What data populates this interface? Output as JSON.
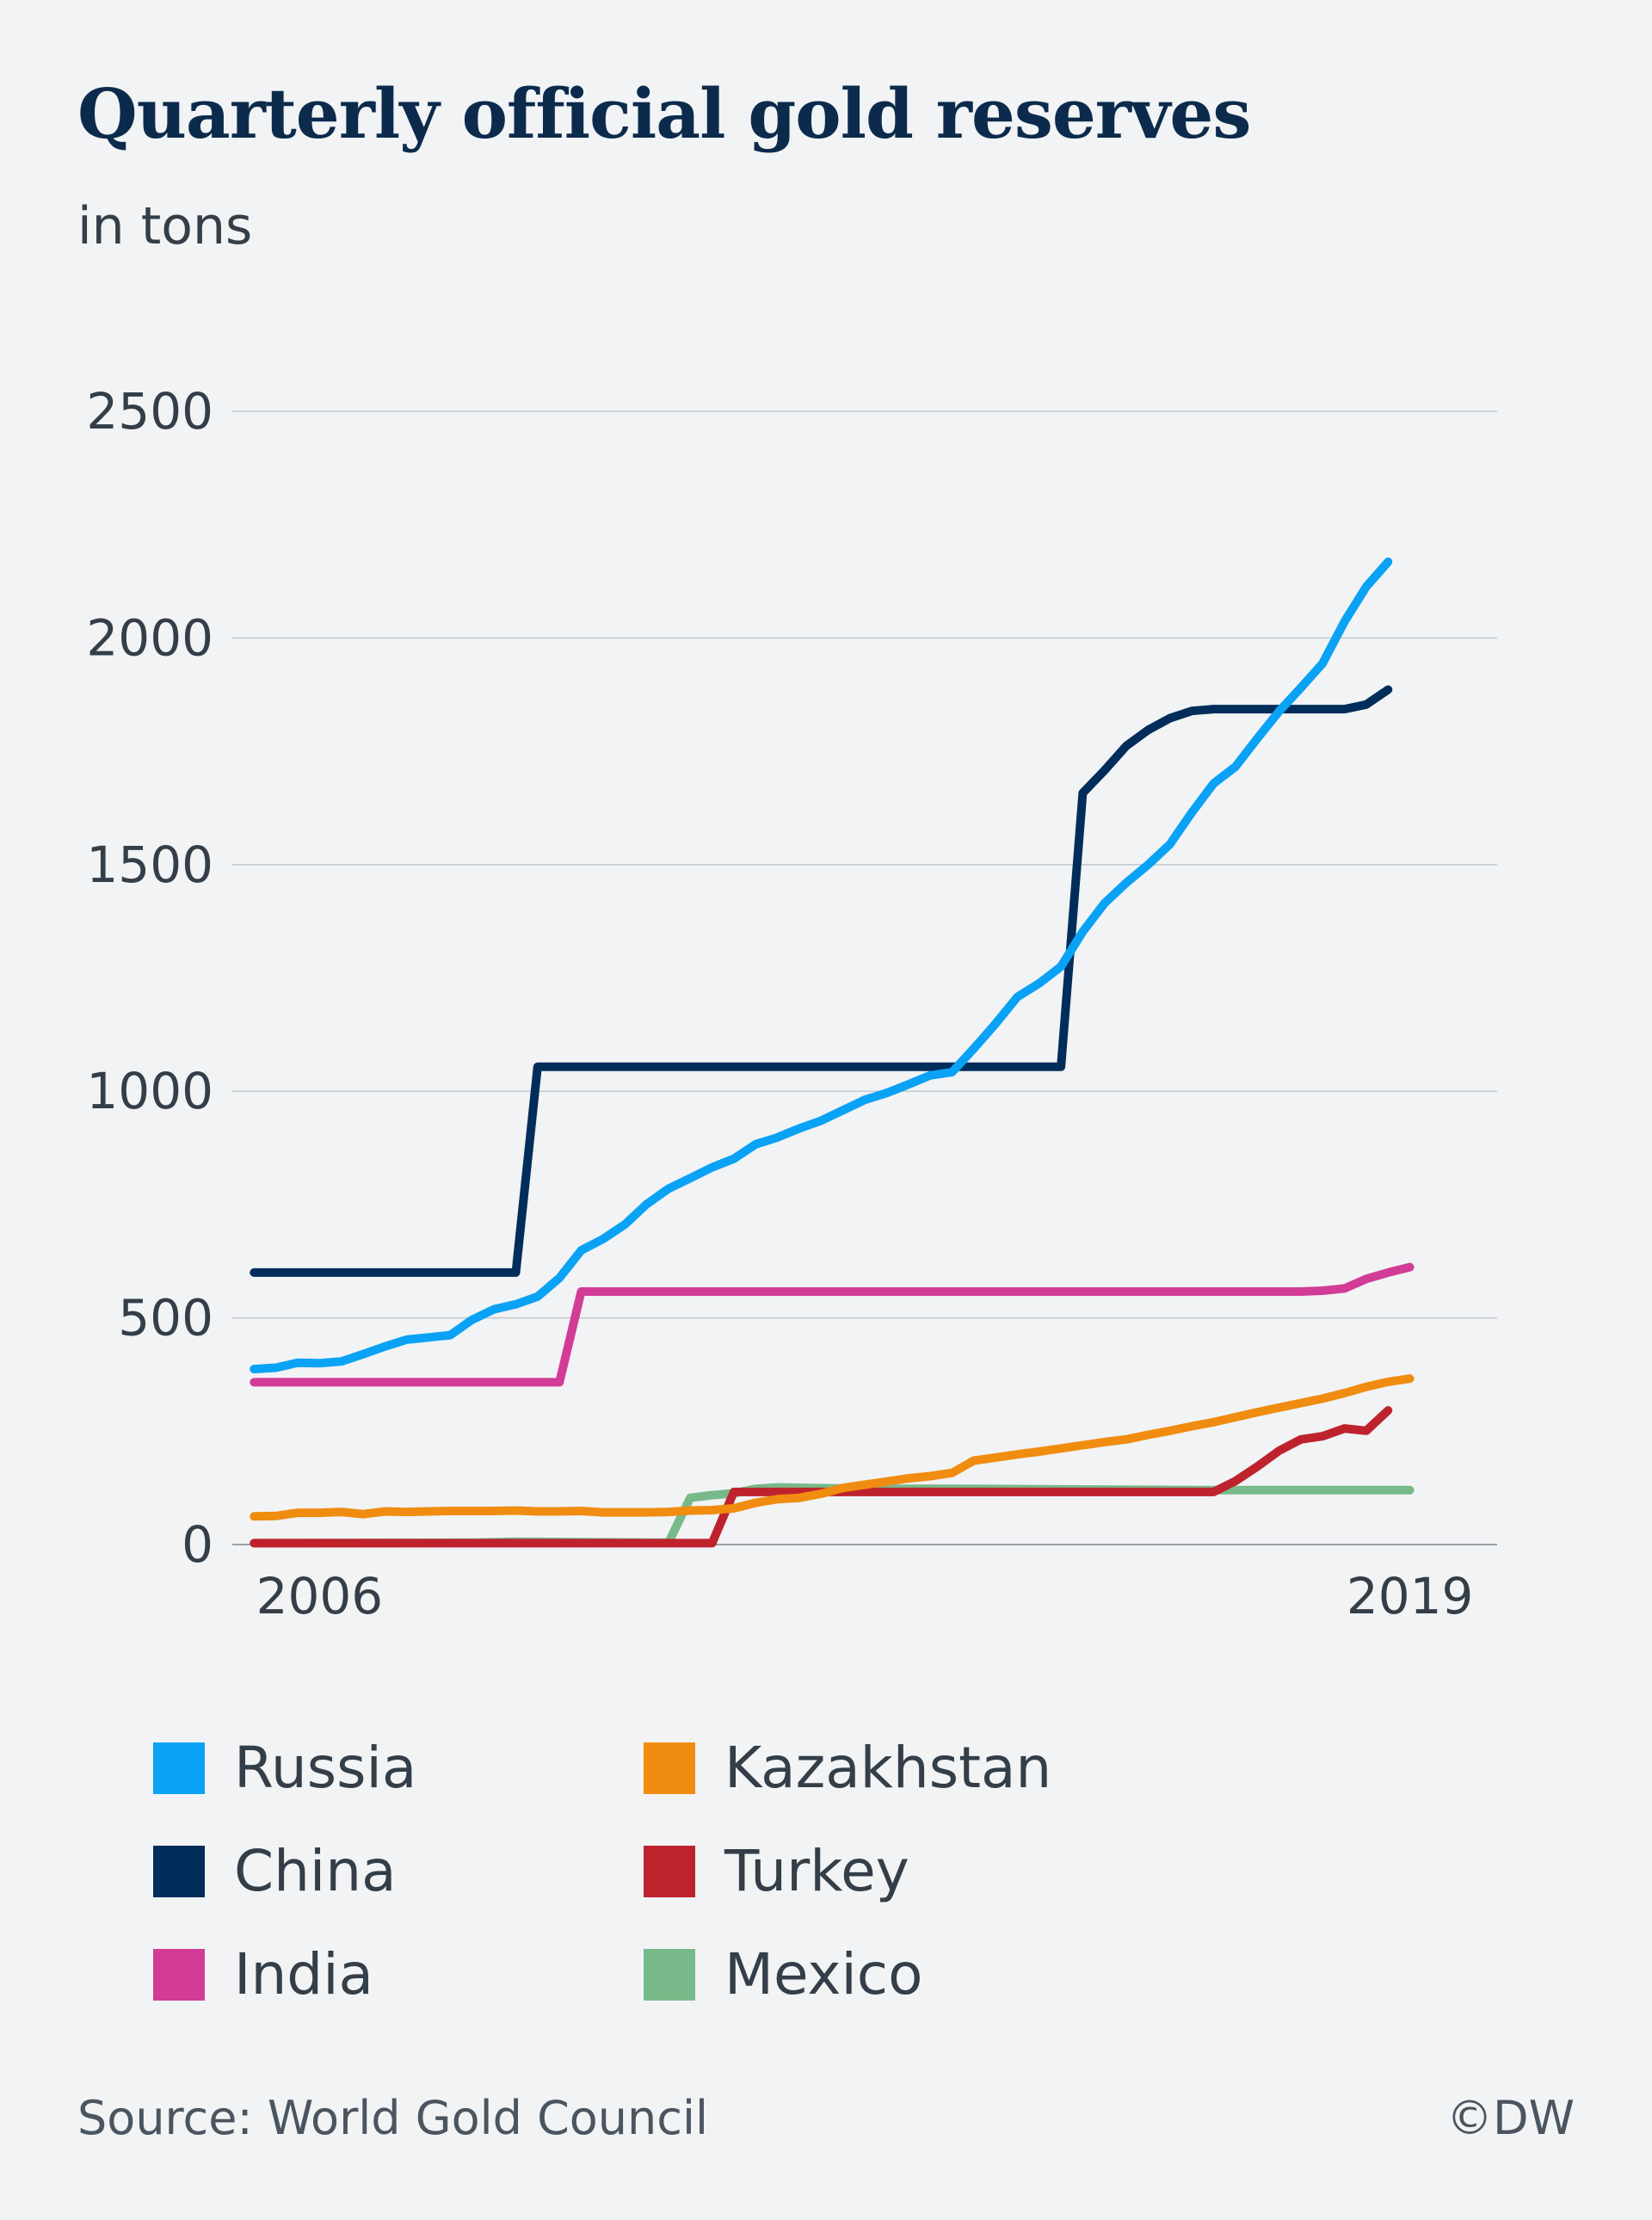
{
  "header": {
    "title": "Quarterly official gold reserves",
    "subtitle": "in tons"
  },
  "footer": {
    "source": "Source: World Gold Council",
    "copyright": "©DW"
  },
  "chart_data": {
    "type": "line",
    "title": "Quarterly official gold reserves",
    "subtitle": "in tons",
    "xlabel": "",
    "ylabel": "",
    "ylim": [
      0,
      2500
    ],
    "yticks": [
      0,
      500,
      1000,
      1500,
      2000,
      2500
    ],
    "xlim": [
      2005.75,
      2020.25
    ],
    "xtick_labels": [
      {
        "x": 2006.75,
        "label": "2006"
      },
      {
        "x": 2019.25,
        "label": "2019"
      }
    ],
    "grid": "horizontal",
    "legend_position": "bottom",
    "series": [
      {
        "name": "Russia",
        "color": "#0aa2f5",
        "points": [
          [
            2006.0,
            387
          ],
          [
            2006.25,
            390
          ],
          [
            2006.5,
            401
          ],
          [
            2006.75,
            400
          ],
          [
            2007.0,
            404
          ],
          [
            2007.25,
            420
          ],
          [
            2007.5,
            437
          ],
          [
            2007.75,
            452
          ],
          [
            2008.0,
            457
          ],
          [
            2008.25,
            462
          ],
          [
            2008.5,
            496
          ],
          [
            2008.75,
            519
          ],
          [
            2009.0,
            530
          ],
          [
            2009.25,
            547
          ],
          [
            2009.5,
            588
          ],
          [
            2009.75,
            649
          ],
          [
            2010.0,
            674
          ],
          [
            2010.25,
            706
          ],
          [
            2010.5,
            751
          ],
          [
            2010.75,
            785
          ],
          [
            2011.0,
            808
          ],
          [
            2011.25,
            832
          ],
          [
            2011.5,
            851
          ],
          [
            2011.75,
            883
          ],
          [
            2012.0,
            898
          ],
          [
            2012.25,
            918
          ],
          [
            2012.5,
            935
          ],
          [
            2012.75,
            958
          ],
          [
            2013.0,
            981
          ],
          [
            2013.25,
            996
          ],
          [
            2013.5,
            1015
          ],
          [
            2013.75,
            1035
          ],
          [
            2014.0,
            1042
          ],
          [
            2014.25,
            1094
          ],
          [
            2014.5,
            1149
          ],
          [
            2014.75,
            1208
          ],
          [
            2015.0,
            1238
          ],
          [
            2015.25,
            1275
          ],
          [
            2015.5,
            1352
          ],
          [
            2015.75,
            1415
          ],
          [
            2016.0,
            1460
          ],
          [
            2016.25,
            1500
          ],
          [
            2016.5,
            1545
          ],
          [
            2016.75,
            1615
          ],
          [
            2017.0,
            1679
          ],
          [
            2017.25,
            1716
          ],
          [
            2017.5,
            1778
          ],
          [
            2017.75,
            1838
          ],
          [
            2018.0,
            1890
          ],
          [
            2018.25,
            1944
          ],
          [
            2018.5,
            2036
          ],
          [
            2018.75,
            2113
          ],
          [
            2019.0,
            2168
          ]
        ]
      },
      {
        "name": "China",
        "color": "#002d5a",
        "points": [
          [
            2006.0,
            600
          ],
          [
            2009.0,
            600
          ],
          [
            2009.25,
            1054
          ],
          [
            2015.25,
            1054
          ],
          [
            2015.5,
            1658
          ],
          [
            2015.75,
            1708
          ],
          [
            2016.0,
            1762
          ],
          [
            2016.25,
            1797
          ],
          [
            2016.5,
            1823
          ],
          [
            2016.75,
            1839
          ],
          [
            2017.0,
            1843
          ],
          [
            2017.5,
            1843
          ],
          [
            2018.0,
            1843
          ],
          [
            2018.25,
            1843
          ],
          [
            2018.5,
            1843
          ],
          [
            2018.75,
            1853
          ],
          [
            2019.0,
            1886
          ]
        ]
      },
      {
        "name": "India",
        "color": "#d23c96",
        "points": [
          [
            2006.0,
            358
          ],
          [
            2009.5,
            358
          ],
          [
            2009.75,
            558
          ],
          [
            2018.0,
            558
          ],
          [
            2018.25,
            560
          ],
          [
            2018.5,
            565
          ],
          [
            2018.75,
            586
          ],
          [
            2019.0,
            600
          ],
          [
            2019.25,
            612
          ]
        ]
      },
      {
        "name": "Kazakhstan",
        "color": "#f08c0f",
        "points": [
          [
            2006.0,
            62
          ],
          [
            2006.25,
            63
          ],
          [
            2006.5,
            70
          ],
          [
            2006.75,
            70
          ],
          [
            2007.0,
            72
          ],
          [
            2007.25,
            67
          ],
          [
            2007.5,
            73
          ],
          [
            2007.75,
            72
          ],
          [
            2008.0,
            73
          ],
          [
            2008.25,
            74
          ],
          [
            2008.5,
            74
          ],
          [
            2008.75,
            74
          ],
          [
            2009.0,
            75
          ],
          [
            2009.25,
            73
          ],
          [
            2009.5,
            73
          ],
          [
            2009.75,
            74
          ],
          [
            2010.0,
            71
          ],
          [
            2010.25,
            71
          ],
          [
            2010.5,
            71
          ],
          [
            2010.75,
            72
          ],
          [
            2011.0,
            75
          ],
          [
            2011.25,
            76
          ],
          [
            2011.5,
            80
          ],
          [
            2011.75,
            92
          ],
          [
            2012.0,
            100
          ],
          [
            2012.25,
            103
          ],
          [
            2012.5,
            112
          ],
          [
            2012.75,
            125
          ],
          [
            2013.0,
            132
          ],
          [
            2013.25,
            139
          ],
          [
            2013.5,
            146
          ],
          [
            2013.75,
            151
          ],
          [
            2014.0,
            158
          ],
          [
            2014.25,
            185
          ],
          [
            2014.5,
            192
          ],
          [
            2014.75,
            199
          ],
          [
            2015.0,
            205
          ],
          [
            2015.25,
            212
          ],
          [
            2015.5,
            219
          ],
          [
            2015.75,
            226
          ],
          [
            2016.0,
            232
          ],
          [
            2016.25,
            242
          ],
          [
            2016.5,
            251
          ],
          [
            2016.75,
            261
          ],
          [
            2017.0,
            270
          ],
          [
            2017.25,
            281
          ],
          [
            2017.5,
            292
          ],
          [
            2017.75,
            302
          ],
          [
            2018.0,
            312
          ],
          [
            2018.25,
            322
          ],
          [
            2018.5,
            334
          ],
          [
            2018.75,
            348
          ],
          [
            2019.0,
            359
          ],
          [
            2019.25,
            366
          ]
        ]
      },
      {
        "name": "Turkey",
        "color": "#be232d",
        "points": [
          [
            2006.0,
            3
          ],
          [
            2011.25,
            3
          ],
          [
            2011.5,
            116
          ],
          [
            2017.0,
            116
          ],
          [
            2017.25,
            140
          ],
          [
            2017.5,
            172
          ],
          [
            2017.75,
            207
          ],
          [
            2018.0,
            232
          ],
          [
            2018.25,
            239
          ],
          [
            2018.5,
            256
          ],
          [
            2018.75,
            251
          ],
          [
            2019.0,
            296
          ]
        ]
      },
      {
        "name": "Mexico",
        "color": "#78b98a",
        "points": [
          [
            2006.0,
            3
          ],
          [
            2008.5,
            4
          ],
          [
            2009.0,
            6
          ],
          [
            2010.75,
            4
          ],
          [
            2011.0,
            103
          ],
          [
            2011.25,
            109
          ],
          [
            2011.5,
            113
          ],
          [
            2011.75,
            123
          ],
          [
            2012.0,
            126
          ],
          [
            2013.0,
            123
          ],
          [
            2014.0,
            123
          ],
          [
            2015.0,
            122
          ],
          [
            2016.0,
            121
          ],
          [
            2017.0,
            120
          ],
          [
            2018.0,
            120
          ],
          [
            2019.0,
            120
          ],
          [
            2019.25,
            120
          ]
        ]
      }
    ]
  }
}
